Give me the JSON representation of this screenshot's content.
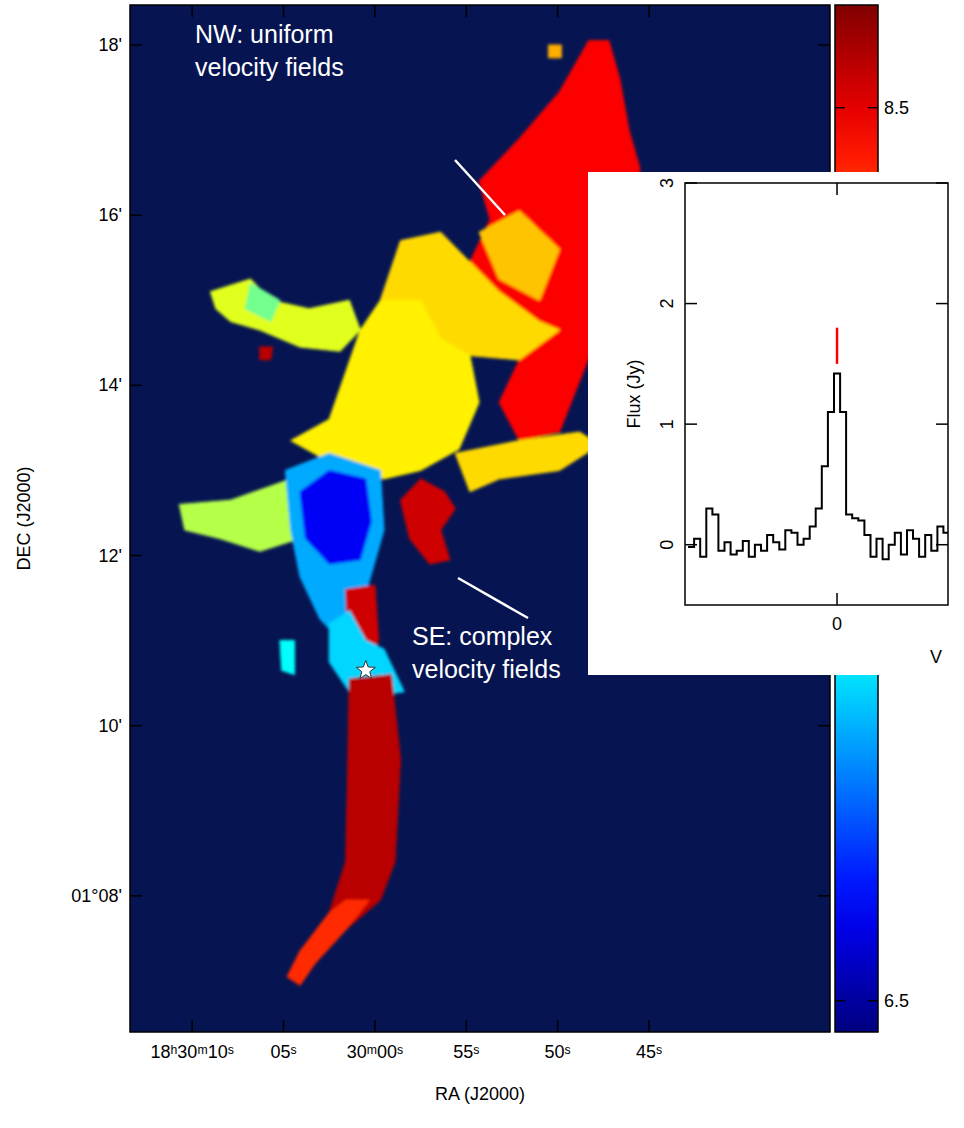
{
  "chart_data": [
    {
      "type": "map",
      "xlabel": "RA (J2000)",
      "ylabel": "DEC (J2000)",
      "xlim": [
        73.4,
        35.1
      ],
      "ylim": [
        6.4,
        18.47
      ],
      "xticks": [
        {
          "value": 70,
          "label": "18ʰ30ᵐ10ˢ"
        },
        {
          "value": 65,
          "label": "05ˢ"
        },
        {
          "value": 60,
          "label": "30ᵐ00ˢ"
        },
        {
          "value": 55,
          "label": "55ˢ"
        },
        {
          "value": 50,
          "label": "50ˢ"
        },
        {
          "value": 45,
          "label": "45ˢ"
        }
      ],
      "yticks": [
        {
          "value": 8,
          "label": "01°08ʹ"
        },
        {
          "value": 10,
          "label": "10ʹ"
        },
        {
          "value": 12,
          "label": "12ʹ"
        },
        {
          "value": 14,
          "label": "14ʹ"
        },
        {
          "value": 16,
          "label": "16ʹ"
        },
        {
          "value": 18,
          "label": "18ʹ"
        }
      ],
      "regions": [
        {
          "value": 8.45,
          "ra": [
            54.3,
            52.1,
            49.9,
            48.3,
            47.2,
            46.6,
            46.1,
            45.5,
            46.1,
            47.7,
            48.8,
            49.9,
            52.1,
            53.2,
            52.1,
            51.0,
            53.2,
            54.8,
            53.7
          ],
          "dec": [
            16.4,
            16.9,
            17.45,
            18.05,
            18.05,
            17.6,
            17.0,
            16.55,
            15.45,
            14.65,
            14.05,
            13.45,
            13.35,
            13.8,
            14.3,
            14.75,
            15.1,
            15.45,
            15.95
          ]
        },
        {
          "value": 8.0,
          "ra": [
            54.3,
            52.1,
            49.9,
            51.0,
            53.2
          ],
          "dec": [
            15.8,
            16.05,
            15.6,
            15.0,
            15.25
          ]
        },
        {
          "value": 7.95,
          "ra": [
            59.7,
            58.6,
            56.4,
            54.8,
            53.2,
            51.0,
            49.9,
            52.1,
            54.8,
            56.4
          ],
          "dec": [
            15.0,
            15.7,
            15.8,
            15.45,
            15.1,
            14.75,
            14.65,
            14.3,
            14.35,
            14.55
          ]
        },
        {
          "value": 7.9,
          "ra": [
            64.6,
            62.5,
            60.8,
            59.7,
            57.5,
            56.4,
            54.8,
            54.3,
            55.4,
            57.5,
            59.5,
            62.5
          ],
          "dec": [
            13.35,
            13.6,
            14.65,
            15.0,
            15.0,
            14.55,
            14.35,
            13.8,
            13.25,
            13.0,
            12.9,
            13.1
          ]
        },
        {
          "value": 7.8,
          "ra": [
            69.0,
            66.8,
            65.7,
            63.6,
            61.4,
            60.8,
            61.9,
            64.1,
            66.3,
            67.9,
            68.7
          ],
          "dec": [
            15.1,
            15.25,
            15.0,
            14.9,
            15.0,
            14.65,
            14.4,
            14.45,
            14.65,
            14.75,
            14.9
          ]
        },
        {
          "value": 7.55,
          "ra": [
            66.8,
            65.2,
            65.7,
            67.1
          ],
          "dec": [
            15.2,
            15.0,
            14.75,
            14.9
          ]
        },
        {
          "value": 7.7,
          "ra": [
            70.7,
            67.9,
            64.6,
            64.1,
            66.3,
            68.5,
            70.4
          ],
          "dec": [
            12.6,
            12.65,
            12.9,
            12.2,
            12.05,
            12.2,
            12.3
          ]
        },
        {
          "value": 7.95,
          "ra": [
            55.6,
            52.1,
            48.8,
            47.7,
            49.9,
            53.2,
            54.8
          ],
          "dec": [
            13.2,
            13.35,
            13.45,
            13.3,
            13.0,
            12.9,
            12.75
          ]
        },
        {
          "value": 7.1,
          "ra": [
            64.9,
            62.5,
            59.7,
            59.5,
            60.3,
            61.1,
            61.9,
            63.0,
            64.1,
            64.6
          ],
          "dec": [
            13.0,
            13.2,
            13.0,
            12.3,
            11.7,
            11.25,
            11.0,
            11.25,
            11.75,
            12.3
          ]
        },
        {
          "value": 6.7,
          "ra": [
            64.1,
            62.5,
            60.5,
            60.2,
            60.8,
            62.5,
            63.8
          ],
          "dec": [
            12.75,
            13.0,
            12.9,
            12.4,
            11.95,
            11.9,
            12.2
          ]
        },
        {
          "value": 8.55,
          "ra": [
            58.6,
            57.5,
            56.2,
            55.6,
            56.4,
            55.9,
            57.0,
            58.1
          ],
          "dec": [
            12.65,
            12.9,
            12.75,
            12.55,
            12.3,
            11.95,
            11.9,
            12.2
          ]
        },
        {
          "value": 8.55,
          "ra": [
            61.6,
            60.0,
            59.8,
            60.5,
            61.5
          ],
          "dec": [
            11.6,
            11.65,
            11.0,
            10.7,
            10.9
          ]
        },
        {
          "value": 7.2,
          "ra": [
            62.5,
            61.4,
            60.5,
            59.5,
            58.4,
            60.0,
            61.4,
            62.5
          ],
          "dec": [
            11.2,
            11.35,
            11.0,
            10.9,
            10.4,
            10.35,
            10.4,
            10.75
          ]
        },
        {
          "value": 8.6,
          "ra": [
            61.4,
            59.1,
            58.6,
            58.9,
            59.7,
            61.6,
            63.3,
            64.1,
            64.8,
            64.1,
            62.5,
            61.6,
            61.5
          ],
          "dec": [
            10.55,
            10.6,
            9.6,
            8.4,
            7.95,
            7.6,
            7.2,
            6.95,
            7.05,
            7.35,
            7.8,
            8.4,
            9.35
          ]
        },
        {
          "value": 8.35,
          "ra": [
            61.6,
            60.3,
            61.6,
            63.3,
            64.1,
            64.8,
            64.1,
            62.5
          ],
          "dec": [
            7.95,
            7.95,
            7.6,
            7.2,
            6.95,
            7.05,
            7.35,
            7.8
          ]
        },
        {
          "value": 8.6,
          "ra": [
            66.3,
            65.6,
            65.7,
            66.3
          ],
          "dec": [
            14.45,
            14.45,
            14.3,
            14.3
          ]
        },
        {
          "value": 7.3,
          "ra": [
            65.2,
            64.4,
            64.4,
            65.1
          ],
          "dec": [
            11.0,
            11.0,
            10.6,
            10.65
          ]
        },
        {
          "value": 8.05,
          "ra": [
            50.5,
            49.8,
            49.8,
            50.5
          ],
          "dec": [
            18.0,
            18.0,
            17.85,
            17.85
          ]
        }
      ],
      "star": {
        "ra": 60.5,
        "dec": 10.65
      },
      "colorbar": {
        "range": [
          6.43,
          8.73
        ],
        "ticks": [
          6.5,
          8.5
        ]
      },
      "annotations": [
        {
          "lines": [
            "NW: uniform",
            "velocity fields"
          ]
        },
        {
          "lines": [
            "SE: complex",
            "velocity fields"
          ]
        }
      ]
    },
    {
      "type": "line",
      "line_style": "steps",
      "color": "#000000",
      "ylabel": "Flux (Jy)",
      "xlabel": "V",
      "xlim": [
        -10,
        7.3
      ],
      "ylim": [
        -0.5,
        3
      ],
      "xticks": [
        0
      ],
      "yticks": [
        0,
        1,
        2,
        3
      ],
      "x": [
        -9.6,
        -9.2,
        -8.8,
        -8.4,
        -8.0,
        -7.6,
        -7.2,
        -6.8,
        -6.4,
        -6.0,
        -5.6,
        -5.2,
        -4.8,
        -4.4,
        -4.0,
        -3.6,
        -3.2,
        -2.8,
        -2.4,
        -2.0,
        -1.6,
        -1.2,
        -0.8,
        -0.4,
        0.0,
        0.4,
        0.8,
        1.2,
        1.6,
        2.0,
        2.4,
        2.8,
        3.2,
        3.6,
        4.0,
        4.4,
        4.8,
        5.2,
        5.6,
        6.0,
        6.4,
        6.8,
        7.2
      ],
      "values": [
        -0.02,
        0.05,
        -0.1,
        0.3,
        0.25,
        -0.05,
        0.02,
        -0.08,
        -0.05,
        0.03,
        -0.1,
        0.0,
        -0.05,
        0.08,
        0.02,
        -0.04,
        0.12,
        0.1,
        0.0,
        0.05,
        0.15,
        0.3,
        0.65,
        1.1,
        1.42,
        1.1,
        0.25,
        0.22,
        0.2,
        0.08,
        -0.1,
        0.05,
        -0.12,
        0.0,
        0.1,
        -0.08,
        0.12,
        0.05,
        -0.1,
        0.08,
        -0.05,
        0.15,
        0.1
      ],
      "line_marker": {
        "x": 0,
        "y": [
          1.5,
          1.8
        ],
        "color": "#ff0000"
      }
    }
  ]
}
